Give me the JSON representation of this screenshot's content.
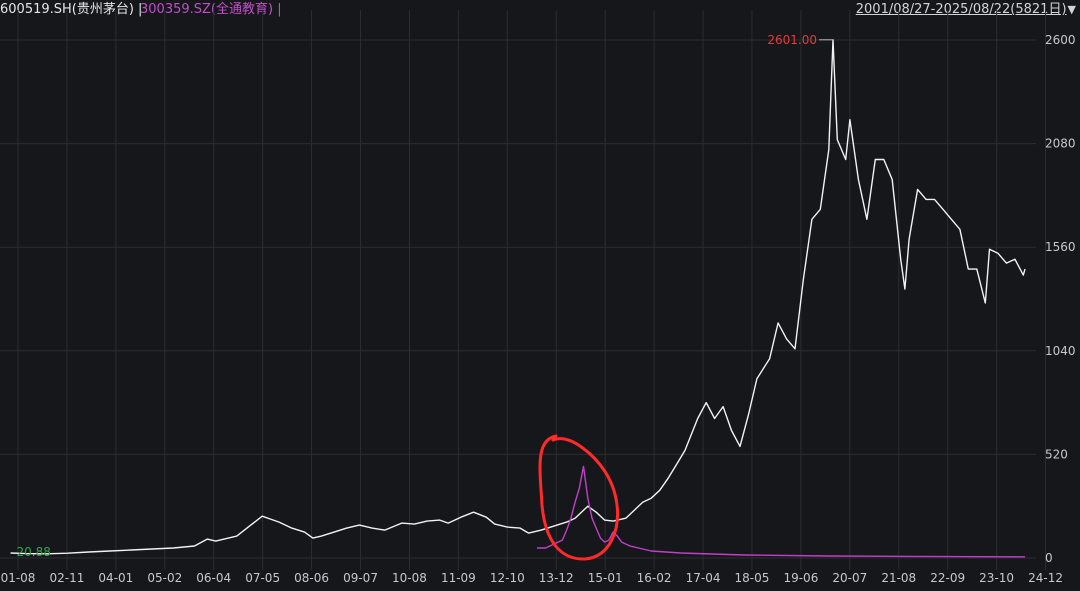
{
  "header": {
    "series1_label": "600519.SH(贵州茅台) |",
    "series2_label": "300359.SZ(全通教育) |",
    "range_label": "2001/08/27-2025/08/22(5821日)",
    "range_icon": "triangle-down-icon"
  },
  "colors": {
    "background": "#16171b",
    "grid": "#2b2d33",
    "series1": "#f2f2f2",
    "series2": "#c23fc9",
    "max_label": "#e23b3b",
    "min_label": "#2ea84a",
    "annotation": "#ff2a2a"
  },
  "chart_data": {
    "type": "line",
    "x_tick_labels": [
      "01-08",
      "02-11",
      "04-01",
      "05-02",
      "06-04",
      "07-05",
      "08-06",
      "09-07",
      "10-08",
      "11-09",
      "12-10",
      "13-12",
      "15-01",
      "16-02",
      "17-04",
      "18-05",
      "19-06",
      "20-07",
      "21-08",
      "22-09",
      "23-10",
      "24-12"
    ],
    "y_ticks": [
      0,
      520,
      1040,
      1560,
      2080,
      2600
    ],
    "ylim": [
      0,
      2600
    ],
    "grid": true,
    "legend": "top-left",
    "max_label": "2601.00",
    "min_label": "20.88",
    "series": [
      {
        "name": "600519.SH(贵州茅台)",
        "points": [
          [
            2001.65,
            25
          ],
          [
            2002.0,
            22
          ],
          [
            2002.5,
            20.88
          ],
          [
            2003.0,
            24
          ],
          [
            2003.5,
            30
          ],
          [
            2004.0,
            35
          ],
          [
            2004.5,
            40
          ],
          [
            2005.0,
            45
          ],
          [
            2005.5,
            50
          ],
          [
            2006.0,
            60
          ],
          [
            2006.3,
            95
          ],
          [
            2006.5,
            85
          ],
          [
            2007.0,
            110
          ],
          [
            2007.3,
            160
          ],
          [
            2007.6,
            210
          ],
          [
            2007.8,
            195
          ],
          [
            2008.0,
            180
          ],
          [
            2008.3,
            150
          ],
          [
            2008.6,
            130
          ],
          [
            2008.8,
            100
          ],
          [
            2009.0,
            110
          ],
          [
            2009.3,
            130
          ],
          [
            2009.6,
            150
          ],
          [
            2009.9,
            165
          ],
          [
            2010.2,
            150
          ],
          [
            2010.5,
            140
          ],
          [
            2010.9,
            175
          ],
          [
            2011.2,
            170
          ],
          [
            2011.5,
            185
          ],
          [
            2011.8,
            190
          ],
          [
            2012.0,
            175
          ],
          [
            2012.3,
            205
          ],
          [
            2012.6,
            230
          ],
          [
            2012.9,
            205
          ],
          [
            2013.1,
            170
          ],
          [
            2013.4,
            155
          ],
          [
            2013.7,
            150
          ],
          [
            2013.9,
            125
          ],
          [
            2014.2,
            140
          ],
          [
            2014.5,
            160
          ],
          [
            2014.8,
            180
          ],
          [
            2015.0,
            200
          ],
          [
            2015.3,
            260
          ],
          [
            2015.5,
            230
          ],
          [
            2015.7,
            190
          ],
          [
            2015.9,
            185
          ],
          [
            2016.2,
            200
          ],
          [
            2016.4,
            240
          ],
          [
            2016.6,
            280
          ],
          [
            2016.8,
            300
          ],
          [
            2017.0,
            340
          ],
          [
            2017.2,
            400
          ],
          [
            2017.4,
            470
          ],
          [
            2017.6,
            540
          ],
          [
            2017.9,
            700
          ],
          [
            2018.1,
            780
          ],
          [
            2018.3,
            700
          ],
          [
            2018.5,
            760
          ],
          [
            2018.7,
            640
          ],
          [
            2018.9,
            560
          ],
          [
            2019.1,
            720
          ],
          [
            2019.3,
            900
          ],
          [
            2019.6,
            1000
          ],
          [
            2019.8,
            1180
          ],
          [
            2020.0,
            1100
          ],
          [
            2020.2,
            1050
          ],
          [
            2020.4,
            1400
          ],
          [
            2020.6,
            1700
          ],
          [
            2020.8,
            1750
          ],
          [
            2021.0,
            2050
          ],
          [
            2021.1,
            2601
          ],
          [
            2021.2,
            2100
          ],
          [
            2021.4,
            2000
          ],
          [
            2021.5,
            2200
          ],
          [
            2021.7,
            1900
          ],
          [
            2021.9,
            1700
          ],
          [
            2022.1,
            2000
          ],
          [
            2022.3,
            2000
          ],
          [
            2022.5,
            1900
          ],
          [
            2022.7,
            1500
          ],
          [
            2022.8,
            1350
          ],
          [
            2022.9,
            1600
          ],
          [
            2023.1,
            1850
          ],
          [
            2023.3,
            1800
          ],
          [
            2023.5,
            1800
          ],
          [
            2023.7,
            1750
          ],
          [
            2023.9,
            1700
          ],
          [
            2024.1,
            1650
          ],
          [
            2024.3,
            1450
          ],
          [
            2024.5,
            1450
          ],
          [
            2024.7,
            1280
          ],
          [
            2024.8,
            1550
          ],
          [
            2025.0,
            1530
          ],
          [
            2025.2,
            1480
          ],
          [
            2025.4,
            1500
          ],
          [
            2025.6,
            1420
          ],
          [
            2025.64,
            1450
          ]
        ]
      },
      {
        "name": "300359.SZ(全通教育)",
        "points": [
          [
            2014.1,
            50
          ],
          [
            2014.3,
            50
          ],
          [
            2014.5,
            70
          ],
          [
            2014.7,
            90
          ],
          [
            2014.8,
            140
          ],
          [
            2014.9,
            200
          ],
          [
            2015.0,
            280
          ],
          [
            2015.1,
            350
          ],
          [
            2015.2,
            460
          ],
          [
            2015.3,
            300
          ],
          [
            2015.4,
            200
          ],
          [
            2015.5,
            150
          ],
          [
            2015.6,
            100
          ],
          [
            2015.7,
            80
          ],
          [
            2015.8,
            90
          ],
          [
            2015.9,
            130
          ],
          [
            2016.0,
            110
          ],
          [
            2016.1,
            80
          ],
          [
            2016.3,
            60
          ],
          [
            2016.5,
            50
          ],
          [
            2016.8,
            35
          ],
          [
            2017.5,
            25
          ],
          [
            2019.0,
            15
          ],
          [
            2021.0,
            10
          ],
          [
            2023.0,
            8
          ],
          [
            2025.64,
            6
          ]
        ]
      }
    ]
  }
}
